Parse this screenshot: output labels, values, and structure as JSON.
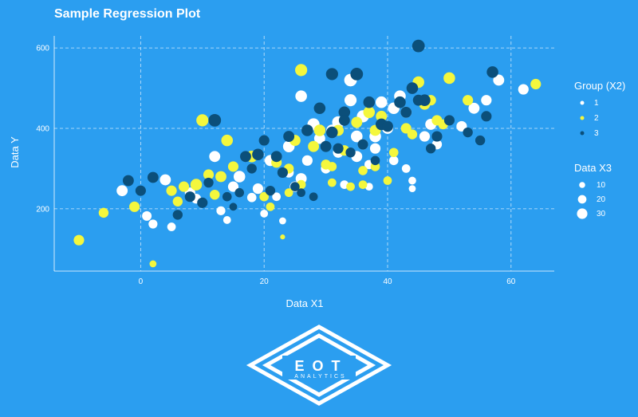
{
  "chart_data": {
    "type": "scatter",
    "title": "Sample Regression Plot",
    "xlabel": "Data X1",
    "ylabel": "Data Y",
    "xlim": [
      -14,
      67
    ],
    "ylim": [
      45,
      630
    ],
    "x_ticks": [
      0,
      20,
      40,
      60
    ],
    "y_ticks": [
      200,
      400,
      600
    ],
    "grid": true,
    "legend_position": "right",
    "group_legend": {
      "title": "Group (X2)",
      "entries": [
        {
          "label": "1",
          "color": "#ffffff"
        },
        {
          "label": "2",
          "color": "#f4f73d"
        },
        {
          "label": "3",
          "color": "#0b4f7a"
        }
      ]
    },
    "size_legend": {
      "title": "Data X3",
      "entries": [
        {
          "label": "10",
          "value": 10
        },
        {
          "label": "20",
          "value": 20
        },
        {
          "label": "30",
          "value": 30
        }
      ]
    },
    "series": [
      {
        "name": "1",
        "color": "#ffffff",
        "points": [
          [
            -3,
            245,
            20
          ],
          [
            1,
            182,
            15
          ],
          [
            2,
            162,
            13
          ],
          [
            4,
            272,
            20
          ],
          [
            5,
            155,
            12
          ],
          [
            8,
            240,
            18
          ],
          [
            9,
            225,
            16
          ],
          [
            12,
            330,
            20
          ],
          [
            13,
            195,
            13
          ],
          [
            14,
            172,
            10
          ],
          [
            15,
            255,
            18
          ],
          [
            16,
            280,
            22
          ],
          [
            18,
            228,
            14
          ],
          [
            19,
            250,
            18
          ],
          [
            20,
            188,
            10
          ],
          [
            21,
            320,
            20
          ],
          [
            22,
            230,
            12
          ],
          [
            23,
            170,
            8
          ],
          [
            24,
            355,
            22
          ],
          [
            24,
            290,
            16
          ],
          [
            25,
            255,
            18
          ],
          [
            26,
            275,
            20
          ],
          [
            26,
            480,
            22
          ],
          [
            27,
            320,
            18
          ],
          [
            28,
            410,
            24
          ],
          [
            29,
            375,
            20
          ],
          [
            30,
            300,
            16
          ],
          [
            31,
            395,
            22
          ],
          [
            32,
            415,
            24
          ],
          [
            32,
            340,
            18
          ],
          [
            33,
            260,
            12
          ],
          [
            34,
            520,
            26
          ],
          [
            34,
            470,
            24
          ],
          [
            35,
            380,
            22
          ],
          [
            35,
            330,
            20
          ],
          [
            36,
            430,
            24
          ],
          [
            36,
            360,
            18
          ],
          [
            37,
            310,
            14
          ],
          [
            37,
            255,
            10
          ],
          [
            38,
            350,
            18
          ],
          [
            38,
            380,
            22
          ],
          [
            39,
            465,
            22
          ],
          [
            40,
            400,
            20
          ],
          [
            41,
            450,
            22
          ],
          [
            41,
            320,
            14
          ],
          [
            42,
            480,
            22
          ],
          [
            43,
            440,
            20
          ],
          [
            43,
            300,
            12
          ],
          [
            44,
            270,
            10
          ],
          [
            44,
            250,
            8
          ],
          [
            46,
            380,
            18
          ],
          [
            47,
            410,
            20
          ],
          [
            48,
            360,
            16
          ],
          [
            52,
            405,
            18
          ],
          [
            54,
            450,
            20
          ],
          [
            56,
            470,
            18
          ],
          [
            58,
            520,
            20
          ],
          [
            62,
            497,
            18
          ]
        ]
      },
      {
        "name": "2",
        "color": "#f4f73d",
        "points": [
          [
            -10,
            122,
            18
          ],
          [
            -6,
            190,
            16
          ],
          [
            -1,
            205,
            18
          ],
          [
            2,
            63,
            8
          ],
          [
            5,
            245,
            18
          ],
          [
            6,
            218,
            16
          ],
          [
            7,
            255,
            18
          ],
          [
            9,
            260,
            22
          ],
          [
            10,
            420,
            24
          ],
          [
            11,
            285,
            18
          ],
          [
            12,
            235,
            16
          ],
          [
            13,
            280,
            20
          ],
          [
            14,
            370,
            22
          ],
          [
            15,
            305,
            18
          ],
          [
            18,
            330,
            22
          ],
          [
            20,
            230,
            14
          ],
          [
            21,
            205,
            12
          ],
          [
            22,
            315,
            18
          ],
          [
            23,
            130,
            4
          ],
          [
            24,
            240,
            12
          ],
          [
            24,
            300,
            16
          ],
          [
            25,
            370,
            20
          ],
          [
            26,
            545,
            24
          ],
          [
            26,
            260,
            14
          ],
          [
            28,
            355,
            20
          ],
          [
            29,
            395,
            22
          ],
          [
            30,
            310,
            16
          ],
          [
            31,
            265,
            12
          ],
          [
            31,
            305,
            14
          ],
          [
            32,
            395,
            20
          ],
          [
            33,
            345,
            18
          ],
          [
            34,
            255,
            12
          ],
          [
            35,
            415,
            20
          ],
          [
            36,
            295,
            14
          ],
          [
            36,
            260,
            12
          ],
          [
            37,
            440,
            22
          ],
          [
            38,
            395,
            20
          ],
          [
            38,
            305,
            14
          ],
          [
            39,
            430,
            20
          ],
          [
            40,
            270,
            12
          ],
          [
            41,
            340,
            14
          ],
          [
            43,
            400,
            18
          ],
          [
            44,
            385,
            16
          ],
          [
            45,
            515,
            22
          ],
          [
            46,
            460,
            20
          ],
          [
            47,
            470,
            18
          ],
          [
            48,
            420,
            18
          ],
          [
            49,
            410,
            16
          ],
          [
            50,
            525,
            22
          ],
          [
            53,
            470,
            18
          ],
          [
            64,
            510,
            18
          ]
        ]
      },
      {
        "name": "3",
        "color": "#0b4f7a",
        "points": [
          [
            -2,
            270,
            20
          ],
          [
            0,
            245,
            18
          ],
          [
            2,
            278,
            20
          ],
          [
            6,
            185,
            16
          ],
          [
            8,
            230,
            18
          ],
          [
            10,
            215,
            18
          ],
          [
            11,
            265,
            16
          ],
          [
            12,
            420,
            26
          ],
          [
            14,
            230,
            14
          ],
          [
            15,
            205,
            10
          ],
          [
            16,
            240,
            14
          ],
          [
            17,
            330,
            20
          ],
          [
            18,
            300,
            16
          ],
          [
            19,
            335,
            22
          ],
          [
            20,
            370,
            18
          ],
          [
            21,
            245,
            16
          ],
          [
            22,
            330,
            20
          ],
          [
            23,
            290,
            18
          ],
          [
            24,
            380,
            20
          ],
          [
            25,
            255,
            14
          ],
          [
            26,
            240,
            12
          ],
          [
            27,
            395,
            22
          ],
          [
            28,
            230,
            12
          ],
          [
            29,
            450,
            22
          ],
          [
            30,
            355,
            20
          ],
          [
            31,
            390,
            22
          ],
          [
            31,
            535,
            24
          ],
          [
            32,
            350,
            18
          ],
          [
            33,
            440,
            22
          ],
          [
            33,
            420,
            20
          ],
          [
            34,
            340,
            16
          ],
          [
            35,
            535,
            26
          ],
          [
            36,
            360,
            18
          ],
          [
            37,
            465,
            22
          ],
          [
            38,
            320,
            14
          ],
          [
            39,
            410,
            22
          ],
          [
            40,
            405,
            20
          ],
          [
            42,
            465,
            22
          ],
          [
            43,
            440,
            20
          ],
          [
            44,
            500,
            22
          ],
          [
            45,
            605,
            26
          ],
          [
            45,
            470,
            20
          ],
          [
            46,
            470,
            22
          ],
          [
            47,
            350,
            16
          ],
          [
            48,
            380,
            18
          ],
          [
            50,
            420,
            18
          ],
          [
            53,
            390,
            16
          ],
          [
            55,
            370,
            16
          ],
          [
            56,
            430,
            18
          ],
          [
            57,
            540,
            22
          ]
        ]
      }
    ]
  },
  "logo": {
    "main_text": "EOT",
    "sub_text": "ANALYTICS"
  }
}
